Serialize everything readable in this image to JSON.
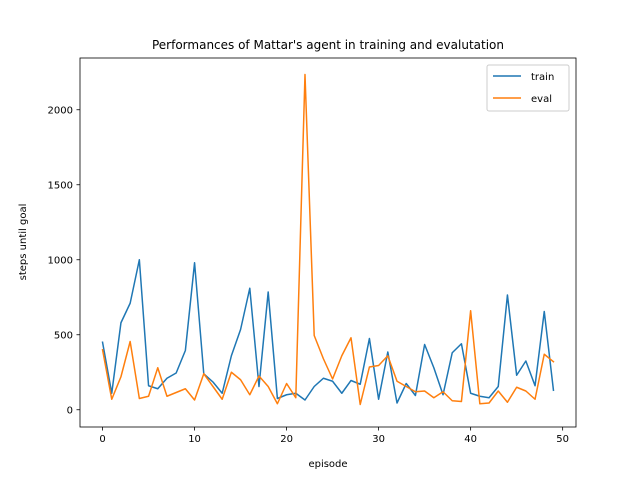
{
  "chart_data": {
    "type": "line",
    "title": "Performances of Mattar's agent in training and evalutation",
    "xlabel": "episode",
    "ylabel": "steps until goal",
    "xlim": [
      -2.45,
      51.45
    ],
    "ylim": [
      -115,
      2345
    ],
    "xticks": [
      0,
      10,
      20,
      30,
      40,
      50
    ],
    "yticks": [
      0,
      500,
      1000,
      1500,
      2000
    ],
    "grid": false,
    "legend_position": "top-right",
    "x": [
      0,
      1,
      2,
      3,
      4,
      5,
      6,
      7,
      8,
      9,
      10,
      11,
      12,
      13,
      14,
      15,
      16,
      17,
      18,
      19,
      20,
      21,
      22,
      23,
      24,
      25,
      26,
      27,
      28,
      29,
      30,
      31,
      32,
      33,
      34,
      35,
      36,
      37,
      38,
      39,
      40,
      41,
      42,
      43,
      44,
      45,
      46,
      47,
      48,
      49
    ],
    "series": [
      {
        "name": "train",
        "color": "#1f77b4",
        "values": [
          450,
          110,
          580,
          710,
          1000,
          160,
          140,
          210,
          245,
          395,
          980,
          240,
          185,
          110,
          360,
          535,
          810,
          155,
          785,
          75,
          100,
          110,
          65,
          155,
          210,
          190,
          110,
          195,
          170,
          475,
          70,
          385,
          45,
          175,
          95,
          435,
          280,
          100,
          380,
          440,
          110,
          90,
          80,
          155,
          765,
          230,
          325,
          160,
          655,
          130
        ]
      },
      {
        "name": "eval",
        "color": "#ff7f0e",
        "values": [
          400,
          70,
          220,
          455,
          75,
          90,
          280,
          90,
          115,
          140,
          65,
          240,
          155,
          70,
          250,
          200,
          100,
          225,
          155,
          40,
          175,
          80,
          2235,
          495,
          340,
          205,
          360,
          480,
          35,
          285,
          295,
          360,
          190,
          155,
          120,
          125,
          80,
          120,
          60,
          55,
          660,
          40,
          45,
          125,
          50,
          150,
          125,
          70,
          370,
          320
        ]
      }
    ]
  }
}
